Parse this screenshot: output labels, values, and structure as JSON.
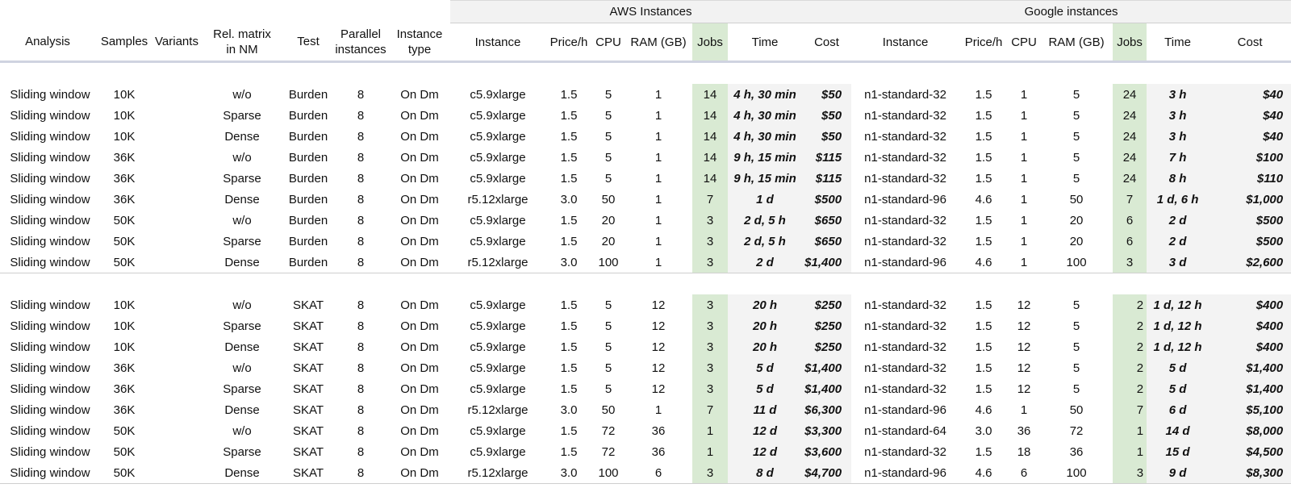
{
  "groups": {
    "aws": "AWS Instances",
    "google": "Google instances"
  },
  "headers": [
    "Analysis",
    "Samples",
    "Variants",
    "Rel. matrix\nin NM",
    "Test",
    "Parallel\ninstances",
    "Instance\ntype",
    "Instance",
    "Price/h",
    "CPU",
    "RAM (GB)",
    "Jobs",
    "Time",
    "Cost",
    "Instance",
    "Price/h",
    "CPU",
    "RAM (GB)",
    "Jobs",
    "Time",
    "Cost"
  ],
  "burden_rows": [
    [
      "Sliding window",
      "10K",
      "",
      "w/o",
      "Burden",
      "8",
      "On Dm",
      "c5.9xlarge",
      "1.5",
      "5",
      "1",
      "14",
      "4 h, 30 min",
      "$50",
      "n1-standard-32",
      "1.5",
      "1",
      "5",
      "24",
      "3 h",
      "$40"
    ],
    [
      "Sliding window",
      "10K",
      "",
      "Sparse",
      "Burden",
      "8",
      "On Dm",
      "c5.9xlarge",
      "1.5",
      "5",
      "1",
      "14",
      "4 h, 30 min",
      "$50",
      "n1-standard-32",
      "1.5",
      "1",
      "5",
      "24",
      "3 h",
      "$40"
    ],
    [
      "Sliding window",
      "10K",
      "",
      "Dense",
      "Burden",
      "8",
      "On Dm",
      "c5.9xlarge",
      "1.5",
      "5",
      "1",
      "14",
      "4 h, 30 min",
      "$50",
      "n1-standard-32",
      "1.5",
      "1",
      "5",
      "24",
      "3 h",
      "$40"
    ],
    [
      "Sliding window",
      "36K",
      "",
      "w/o",
      "Burden",
      "8",
      "On Dm",
      "c5.9xlarge",
      "1.5",
      "5",
      "1",
      "14",
      "9 h, 15 min",
      "$115",
      "n1-standard-32",
      "1.5",
      "1",
      "5",
      "24",
      "7 h",
      "$100"
    ],
    [
      "Sliding window",
      "36K",
      "",
      "Sparse",
      "Burden",
      "8",
      "On Dm",
      "c5.9xlarge",
      "1.5",
      "5",
      "1",
      "14",
      "9 h, 15 min",
      "$115",
      "n1-standard-32",
      "1.5",
      "1",
      "5",
      "24",
      "8 h",
      "$110"
    ],
    [
      "Sliding window",
      "36K",
      "",
      "Dense",
      "Burden",
      "8",
      "On Dm",
      "r5.12xlarge",
      "3.0",
      "50",
      "1",
      "7",
      "1 d",
      "$500",
      "n1-standard-96",
      "4.6",
      "1",
      "50",
      "7",
      "1 d, 6 h",
      "$1,000"
    ],
    [
      "Sliding window",
      "50K",
      "",
      "w/o",
      "Burden",
      "8",
      "On Dm",
      "c5.9xlarge",
      "1.5",
      "20",
      "1",
      "3",
      "2 d, 5 h",
      "$650",
      "n1-standard-32",
      "1.5",
      "1",
      "20",
      "6",
      "2 d",
      "$500"
    ],
    [
      "Sliding window",
      "50K",
      "",
      "Sparse",
      "Burden",
      "8",
      "On Dm",
      "c5.9xlarge",
      "1.5",
      "20",
      "1",
      "3",
      "2 d, 5 h",
      "$650",
      "n1-standard-32",
      "1.5",
      "1",
      "20",
      "6",
      "2 d",
      "$500"
    ],
    [
      "Sliding window",
      "50K",
      "",
      "Dense",
      "Burden",
      "8",
      "On Dm",
      "r5.12xlarge",
      "3.0",
      "100",
      "1",
      "3",
      "2 d",
      "$1,400",
      "n1-standard-96",
      "4.6",
      "1",
      "100",
      "3",
      "3 d",
      "$2,600"
    ]
  ],
  "skat_rows": [
    [
      "Sliding window",
      "10K",
      "",
      "w/o",
      "SKAT",
      "8",
      "On Dm",
      "c5.9xlarge",
      "1.5",
      "5",
      "12",
      "3",
      "20 h",
      "$250",
      "n1-standard-32",
      "1.5",
      "12",
      "5",
      "2",
      "1 d, 12 h",
      "$400"
    ],
    [
      "Sliding window",
      "10K",
      "",
      "Sparse",
      "SKAT",
      "8",
      "On Dm",
      "c5.9xlarge",
      "1.5",
      "5",
      "12",
      "3",
      "20 h",
      "$250",
      "n1-standard-32",
      "1.5",
      "12",
      "5",
      "2",
      "1 d, 12 h",
      "$400"
    ],
    [
      "Sliding window",
      "10K",
      "",
      "Dense",
      "SKAT",
      "8",
      "On Dm",
      "c5.9xlarge",
      "1.5",
      "5",
      "12",
      "3",
      "20 h",
      "$250",
      "n1-standard-32",
      "1.5",
      "12",
      "5",
      "2",
      "1 d, 12 h",
      "$400"
    ],
    [
      "Sliding window",
      "36K",
      "",
      "w/o",
      "SKAT",
      "8",
      "On Dm",
      "c5.9xlarge",
      "1.5",
      "5",
      "12",
      "3",
      "5 d",
      "$1,400",
      "n1-standard-32",
      "1.5",
      "12",
      "5",
      "2",
      "5 d",
      "$1,400"
    ],
    [
      "Sliding window",
      "36K",
      "",
      "Sparse",
      "SKAT",
      "8",
      "On Dm",
      "c5.9xlarge",
      "1.5",
      "5",
      "12",
      "3",
      "5 d",
      "$1,400",
      "n1-standard-32",
      "1.5",
      "12",
      "5",
      "2",
      "5 d",
      "$1,400"
    ],
    [
      "Sliding window",
      "36K",
      "",
      "Dense",
      "SKAT",
      "8",
      "On Dm",
      "r5.12xlarge",
      "3.0",
      "50",
      "1",
      "7",
      "11 d",
      "$6,300",
      "n1-standard-96",
      "4.6",
      "1",
      "50",
      "7",
      "6 d",
      "$5,100"
    ],
    [
      "Sliding window",
      "50K",
      "",
      "w/o",
      "SKAT",
      "8",
      "On Dm",
      "c5.9xlarge",
      "1.5",
      "72",
      "36",
      "1",
      "12 d",
      "$3,300",
      "n1-standard-64",
      "3.0",
      "36",
      "72",
      "1",
      "14 d",
      "$8,000"
    ],
    [
      "Sliding window",
      "50K",
      "",
      "Sparse",
      "SKAT",
      "8",
      "On Dm",
      "c5.9xlarge",
      "1.5",
      "72",
      "36",
      "1",
      "12 d",
      "$3,600",
      "n1-standard-32",
      "1.5",
      "18",
      "36",
      "1",
      "15 d",
      "$4,500"
    ],
    [
      "Sliding window",
      "50K",
      "",
      "Dense",
      "SKAT",
      "8",
      "On Dm",
      "r5.12xlarge",
      "3.0",
      "100",
      "6",
      "3",
      "8 d",
      "$4,700",
      "n1-standard-96",
      "4.6",
      "6",
      "100",
      "3",
      "9 d",
      "$8,300"
    ]
  ]
}
